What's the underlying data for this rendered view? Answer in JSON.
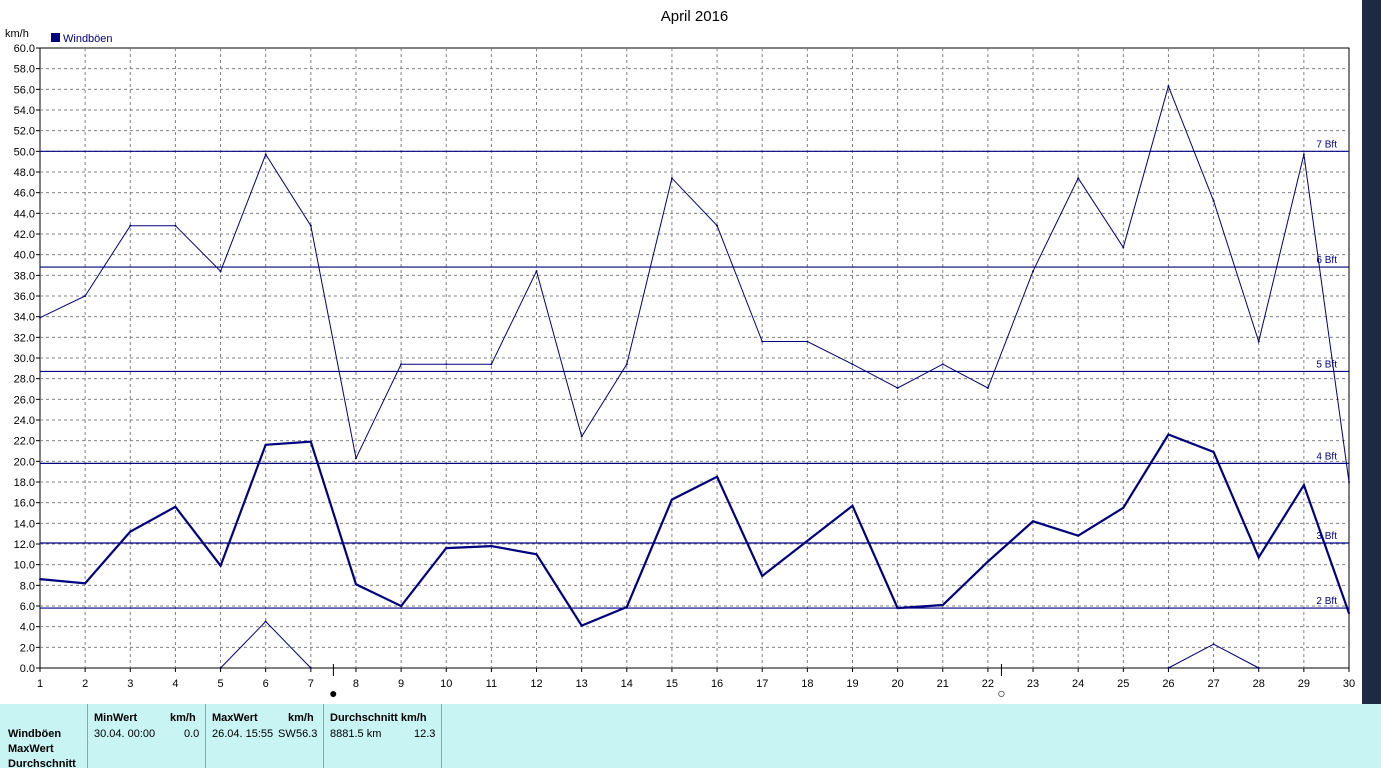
{
  "chart_data": {
    "type": "line",
    "title": "April 2016",
    "ylabel": "km/h",
    "ylim": [
      0,
      60
    ],
    "yticks": [
      "0.0",
      "2.0",
      "4.0",
      "6.0",
      "8.0",
      "10.0",
      "12.0",
      "14.0",
      "16.0",
      "18.0",
      "20.0",
      "22.0",
      "24.0",
      "26.0",
      "28.0",
      "30.0",
      "32.0",
      "34.0",
      "36.0",
      "38.0",
      "40.0",
      "42.0",
      "44.0",
      "46.0",
      "48.0",
      "50.0",
      "52.0",
      "54.0",
      "56.0",
      "58.0",
      "60.0"
    ],
    "x": [
      1,
      2,
      3,
      4,
      5,
      6,
      7,
      8,
      9,
      10,
      11,
      12,
      13,
      14,
      15,
      16,
      17,
      18,
      19,
      20,
      21,
      22,
      23,
      24,
      25,
      26,
      27,
      28,
      29,
      30
    ],
    "xlim": [
      1,
      30
    ],
    "grid": true,
    "legend": {
      "position": "top-left",
      "entries": [
        "Windböen"
      ]
    },
    "series": [
      {
        "name": "Windböen",
        "role": "max",
        "color": "#000080",
        "values": [
          33.9,
          36.0,
          42.8,
          42.8,
          38.4,
          49.7,
          42.8,
          20.3,
          29.4,
          29.4,
          29.4,
          38.4,
          22.4,
          29.4,
          47.4,
          42.8,
          31.6,
          31.6,
          29.4,
          27.1,
          29.4,
          27.1,
          38.4,
          47.4,
          40.7,
          56.3,
          45.2,
          31.6,
          49.7,
          18.0
        ]
      },
      {
        "role": "average",
        "color": "#000080",
        "values": [
          8.6,
          8.2,
          13.2,
          15.6,
          9.9,
          21.6,
          21.9,
          8.1,
          6.0,
          11.6,
          11.8,
          11.0,
          4.1,
          5.9,
          16.3,
          18.5,
          8.9,
          12.3,
          15.7,
          5.8,
          6.1,
          10.3,
          14.2,
          12.8,
          15.5,
          22.6,
          20.9,
          10.7,
          17.7,
          5.3
        ]
      },
      {
        "role": "min",
        "color": "#000080",
        "values": [
          null,
          null,
          null,
          null,
          0.0,
          4.5,
          0.0,
          null,
          null,
          null,
          null,
          null,
          null,
          null,
          null,
          null,
          null,
          null,
          null,
          null,
          null,
          null,
          null,
          null,
          null,
          0.0,
          2.3,
          0.0,
          null,
          null
        ]
      }
    ],
    "reference_lines": [
      {
        "label": "7 Bft",
        "value": 50.0
      },
      {
        "label": "6 Bft",
        "value": 38.8
      },
      {
        "label": "5 Bft",
        "value": 28.7
      },
      {
        "label": "4 Bft",
        "value": 19.8
      },
      {
        "label": "3 Bft",
        "value": 12.1
      },
      {
        "label": "2 Bft",
        "value": 5.8
      }
    ],
    "moon_phases": [
      {
        "day": 7.5,
        "phase": "full",
        "symbol": "●"
      },
      {
        "day": 22.3,
        "phase": "new",
        "symbol": "○"
      }
    ]
  },
  "stats": {
    "row_labels": [
      "Windböen",
      "MaxWert",
      "Durchschnitt"
    ],
    "min": {
      "header": "MinWert",
      "unit": "km/h",
      "datetime": "30.04.  00:00",
      "value": "0.0"
    },
    "max": {
      "header": "MaxWert",
      "unit": "km/h",
      "datetime": "26.04.  15:55",
      "dir": "SW",
      "value": "56.3"
    },
    "avg": {
      "header": "Durchschnitt km/h",
      "distance": "8881.5 km",
      "value": "12.3"
    }
  },
  "colors": {
    "line": "#000080",
    "panel": "#c8f4f4",
    "grid": "#808080"
  }
}
